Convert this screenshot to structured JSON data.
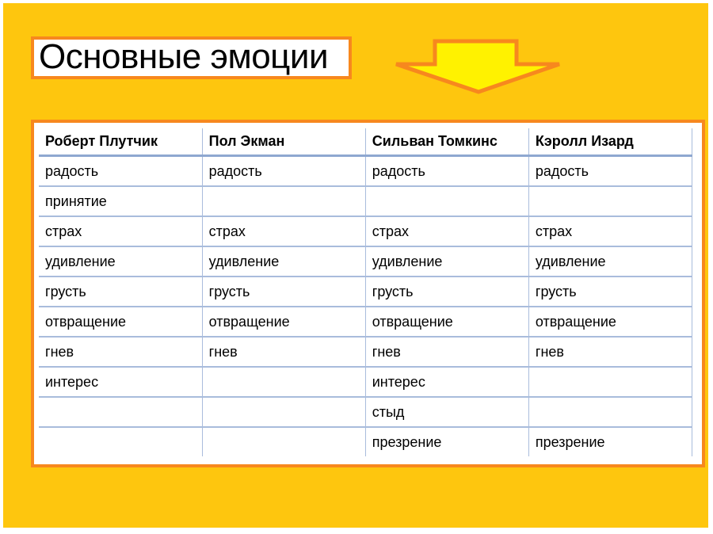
{
  "title": "Основные эмоции",
  "colors": {
    "background": "#FEC60E",
    "border": "#F7881E",
    "arrow": "#FFF200",
    "grid": "#A9BCDC"
  },
  "table": {
    "headers": [
      "Роберт Плутчик",
      "Пол Экман",
      "Сильван Томкинс",
      "Кэролл Изард"
    ],
    "rows": [
      [
        "радость",
        "радость",
        "радость",
        "радость"
      ],
      [
        "принятие",
        "",
        "",
        ""
      ],
      [
        "страх",
        "страх",
        "страх",
        "страх"
      ],
      [
        "удивление",
        "удивление",
        "удивление",
        "удивление"
      ],
      [
        "грусть",
        "грусть",
        "грусть",
        "грусть"
      ],
      [
        "отвращение",
        "отвращение",
        "отвращение",
        "отвращение"
      ],
      [
        "гнев",
        "гнев",
        "гнев",
        "гнев"
      ],
      [
        "интерес",
        "",
        "интерес",
        ""
      ],
      [
        "",
        "",
        "стыд",
        ""
      ],
      [
        "",
        "",
        "презрение",
        "презрение"
      ]
    ]
  }
}
